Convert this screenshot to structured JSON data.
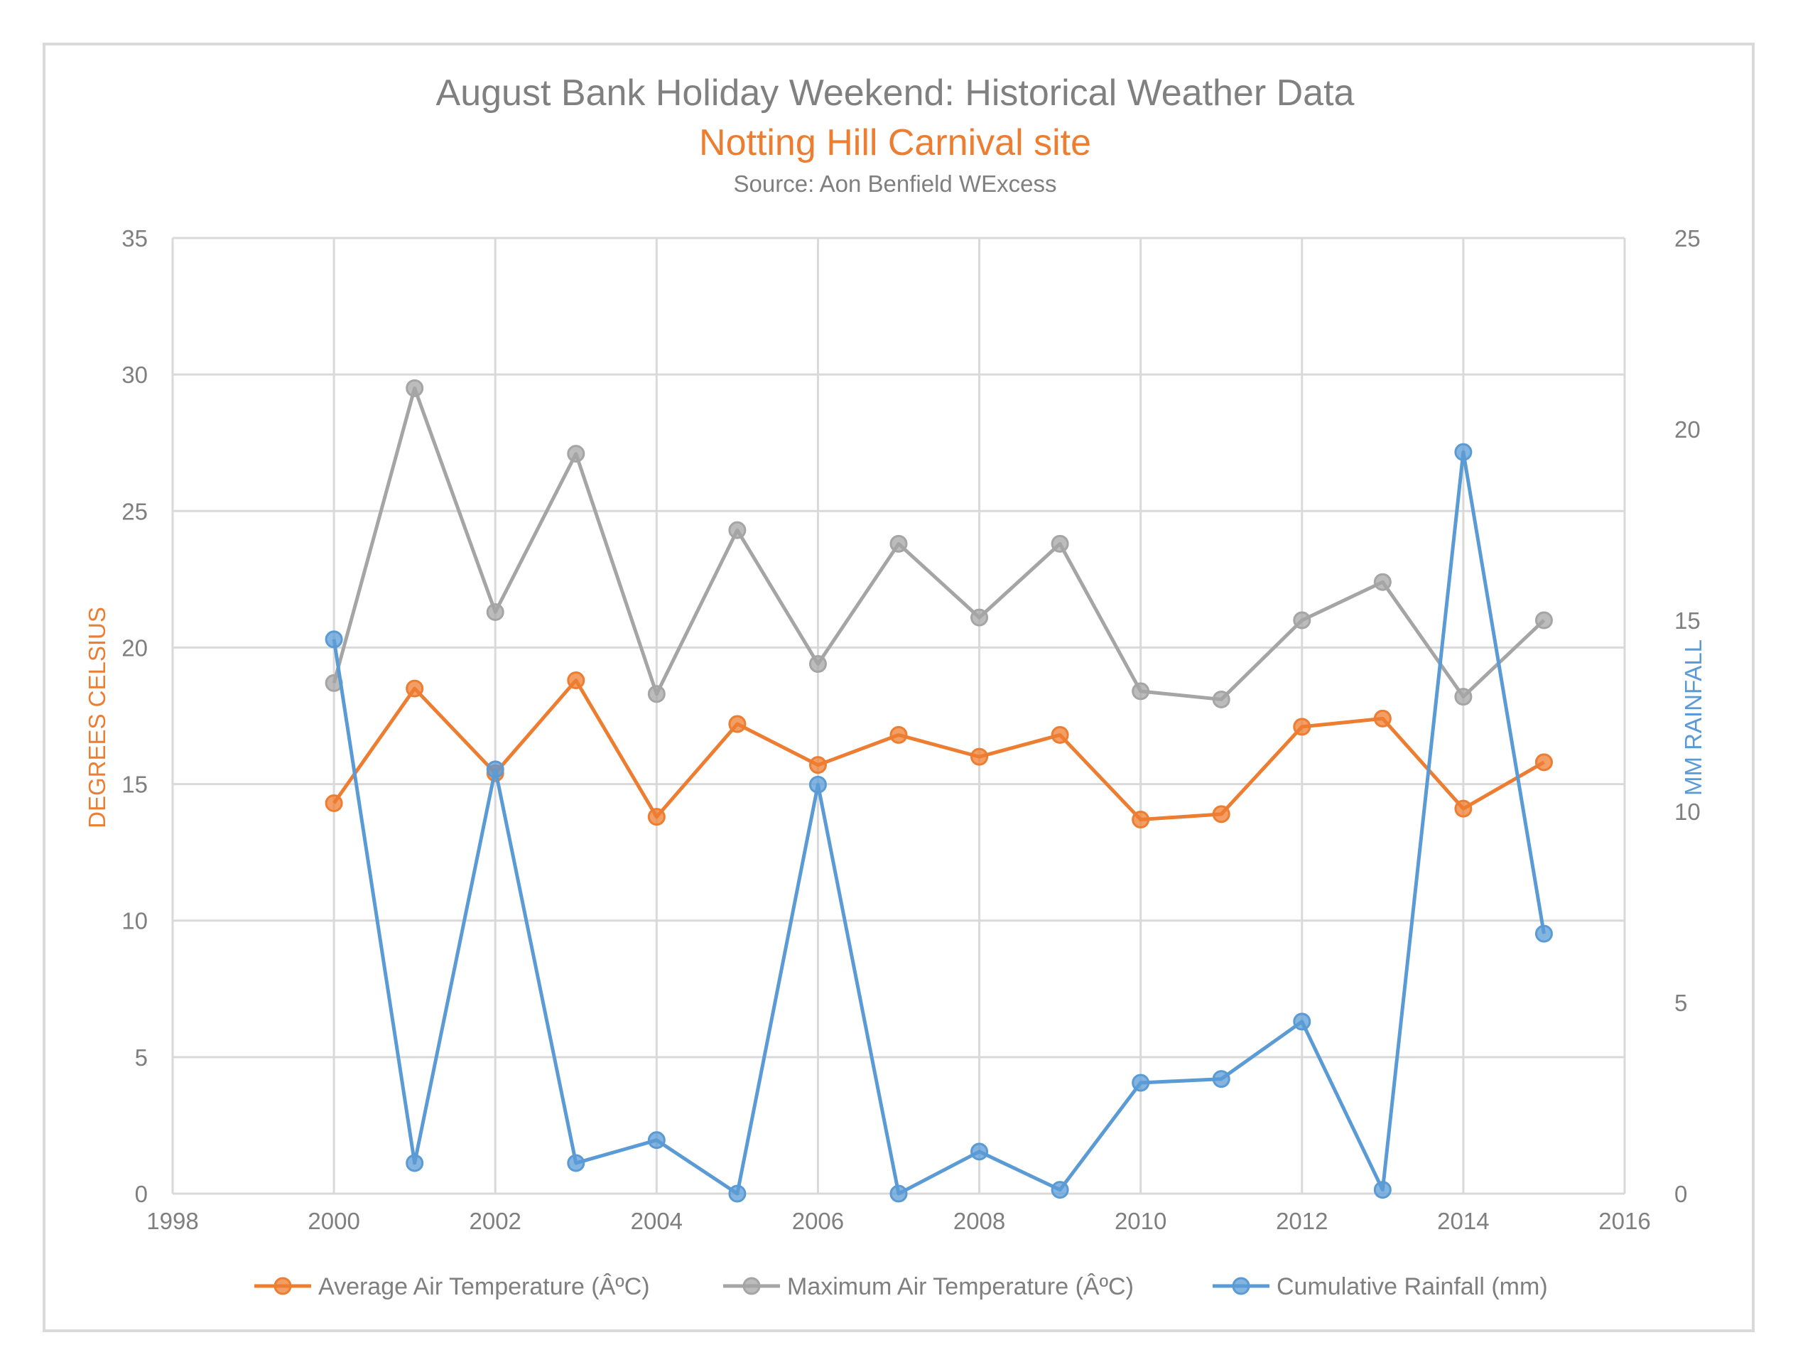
{
  "chart_data": {
    "type": "line",
    "title": "August Bank Holiday Weekend: Historical Weather Data",
    "subtitle": "Notting Hill Carnival site",
    "source": "Source: Aon Benfield WExcess",
    "xlabel": "",
    "ylabel": "DEGREES CELSIUS",
    "y2label": "MM RAINFALL",
    "xlim": [
      1998,
      2016
    ],
    "ylim": [
      0,
      35
    ],
    "y2lim": [
      0,
      25
    ],
    "x_ticks": [
      "1998",
      "2000",
      "2002",
      "2004",
      "2006",
      "2008",
      "2010",
      "2012",
      "2014",
      "2016"
    ],
    "y_ticks": [
      "0",
      "5",
      "10",
      "15",
      "20",
      "25",
      "30",
      "35"
    ],
    "y2_ticks": [
      "0",
      "5",
      "10",
      "15",
      "20",
      "25"
    ],
    "grid": true,
    "legend_position": "bottom",
    "x": [
      2000,
      2001,
      2002,
      2003,
      2004,
      2005,
      2006,
      2007,
      2008,
      2009,
      2010,
      2011,
      2012,
      2013,
      2014,
      2015
    ],
    "series": [
      {
        "name": "Average Air Temperature (ÂºC)",
        "axis": "left",
        "color": "#ed7d31",
        "values": [
          14.3,
          18.5,
          15.4,
          18.8,
          13.8,
          17.2,
          15.7,
          16.8,
          16.0,
          16.8,
          13.7,
          13.9,
          17.1,
          17.4,
          14.1,
          15.8
        ]
      },
      {
        "name": "Maximum Air Temperature (ÂºC)",
        "axis": "left",
        "color": "#a5a5a5",
        "values": [
          18.7,
          29.5,
          21.3,
          27.1,
          18.3,
          24.3,
          19.4,
          23.8,
          21.1,
          23.8,
          18.4,
          18.1,
          21.0,
          22.4,
          18.2,
          21.0
        ]
      },
      {
        "name": "Cumulative Rainfall (mm)",
        "axis": "right",
        "color": "#5b9bd5",
        "values": [
          14.5,
          0.8,
          11.1,
          0.8,
          1.4,
          0.0,
          10.7,
          0.0,
          1.1,
          0.1,
          2.9,
          3.0,
          4.5,
          0.1,
          19.4,
          6.8
        ]
      }
    ]
  },
  "colors": {
    "left_axis_title": "#ed7d31",
    "right_axis_title": "#5b9bd5",
    "subtitle": "#ed7d31",
    "grid": "#d9d9d9"
  }
}
